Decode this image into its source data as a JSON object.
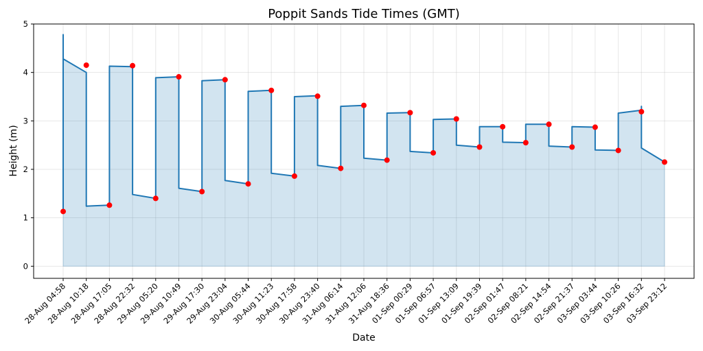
{
  "chart_data": {
    "type": "line",
    "title": "Poppit Sands Tide Times (GMT)",
    "xlabel": "Date",
    "ylabel": "Height (m)",
    "ylim": [
      -0.25,
      5.0
    ],
    "yticks": [
      0,
      1,
      2,
      3,
      4,
      5
    ],
    "grid": true,
    "legend": "none",
    "colors": {
      "line": "#1f77b4",
      "fill": "#1f77b4",
      "points": "#ff0000"
    },
    "categories": [
      "28-Aug 04:58",
      "28-Aug 10:18",
      "28-Aug 17:05",
      "28-Aug 22:32",
      "29-Aug 05:20",
      "29-Aug 10:49",
      "29-Aug 17:30",
      "29-Aug 23:04",
      "30-Aug 05:44",
      "30-Aug 11:23",
      "30-Aug 17:58",
      "30-Aug 23:40",
      "31-Aug 06:14",
      "31-Aug 12:06",
      "31-Aug 18:36",
      "01-Sep 00:29",
      "01-Sep 06:57",
      "01-Sep 13:09",
      "01-Sep 19:39",
      "02-Sep 01:47",
      "02-Sep 08:21",
      "02-Sep 14:54",
      "02-Sep 21:37",
      "03-Sep 03:44",
      "03-Sep 10:26",
      "03-Sep 16:32",
      "03-Sep 23:12"
    ],
    "series": [
      {
        "type": "scatter",
        "values": [
          1.13,
          4.15,
          1.26,
          4.14,
          1.4,
          3.91,
          1.54,
          3.85,
          1.7,
          3.63,
          1.86,
          3.51,
          2.02,
          3.32,
          2.19,
          3.17,
          2.34,
          3.04,
          2.46,
          2.88,
          2.55,
          2.93,
          2.46,
          2.87,
          2.39,
          3.19,
          2.15
        ]
      },
      {
        "type": "line",
        "points": [
          [
            0,
            1.13
          ],
          [
            0,
            4.78
          ],
          [
            0,
            4.28
          ],
          [
            1,
            4.0
          ],
          [
            1,
            1.24
          ],
          [
            2,
            1.26
          ],
          [
            2,
            4.13
          ],
          [
            3,
            4.12
          ],
          [
            3,
            1.48
          ],
          [
            4,
            1.4
          ],
          [
            4,
            3.89
          ],
          [
            5,
            3.91
          ],
          [
            5,
            1.61
          ],
          [
            6,
            1.54
          ],
          [
            6,
            3.83
          ],
          [
            7,
            3.85
          ],
          [
            7,
            1.77
          ],
          [
            8,
            1.7
          ],
          [
            8,
            3.61
          ],
          [
            9,
            3.63
          ],
          [
            9,
            1.92
          ],
          [
            10,
            1.86
          ],
          [
            10,
            3.5
          ],
          [
            11,
            3.52
          ],
          [
            11,
            2.08
          ],
          [
            12,
            2.02
          ],
          [
            12,
            3.3
          ],
          [
            13,
            3.32
          ],
          [
            13,
            2.23
          ],
          [
            14,
            2.19
          ],
          [
            14,
            3.16
          ],
          [
            15,
            3.17
          ],
          [
            15,
            2.37
          ],
          [
            16,
            2.34
          ],
          [
            16,
            3.03
          ],
          [
            17,
            3.04
          ],
          [
            17,
            2.5
          ],
          [
            18,
            2.46
          ],
          [
            18,
            2.88
          ],
          [
            19,
            2.88
          ],
          [
            19,
            2.56
          ],
          [
            20,
            2.55
          ],
          [
            20,
            2.93
          ],
          [
            21,
            2.93
          ],
          [
            21,
            2.48
          ],
          [
            22,
            2.46
          ],
          [
            22,
            2.88
          ],
          [
            23,
            2.87
          ],
          [
            23,
            2.4
          ],
          [
            24,
            2.39
          ],
          [
            24,
            3.16
          ],
          [
            25,
            3.22
          ],
          [
            25,
            3.3
          ],
          [
            25,
            2.44
          ],
          [
            26,
            2.15
          ],
          [
            26,
            2.15
          ]
        ]
      }
    ]
  }
}
